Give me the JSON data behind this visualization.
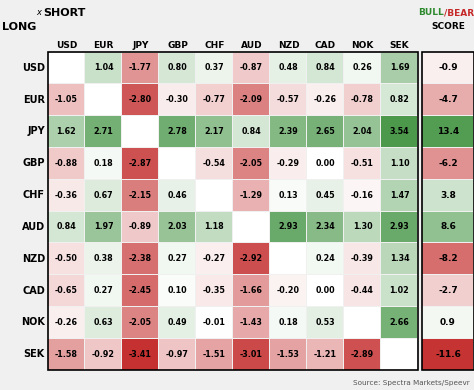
{
  "currencies": [
    "USD",
    "EUR",
    "JPY",
    "GBP",
    "CHF",
    "AUD",
    "NZD",
    "CAD",
    "NOK",
    "SEK"
  ],
  "matrix": [
    [
      null,
      1.04,
      -1.77,
      0.8,
      0.37,
      -0.87,
      0.48,
      0.84,
      0.26,
      1.69
    ],
    [
      -1.05,
      null,
      -2.8,
      -0.3,
      -0.77,
      -2.09,
      -0.57,
      -0.26,
      -0.78,
      0.82
    ],
    [
      1.62,
      2.71,
      null,
      2.78,
      2.17,
      0.84,
      2.39,
      2.65,
      2.04,
      3.54
    ],
    [
      -0.88,
      0.18,
      -2.87,
      null,
      -0.54,
      -2.05,
      -0.29,
      0.0,
      -0.51,
      1.1
    ],
    [
      -0.36,
      0.67,
      -2.15,
      0.46,
      null,
      -1.29,
      0.13,
      0.45,
      -0.16,
      1.47
    ],
    [
      0.84,
      1.97,
      -0.89,
      2.03,
      1.18,
      null,
      2.93,
      2.34,
      1.3,
      2.93
    ],
    [
      -0.5,
      0.38,
      -2.38,
      0.27,
      -0.27,
      -2.92,
      null,
      0.24,
      -0.39,
      1.34
    ],
    [
      -0.65,
      0.27,
      -2.45,
      0.1,
      -0.35,
      -1.66,
      -0.2,
      0.0,
      -0.44,
      1.02
    ],
    [
      -0.26,
      0.63,
      -2.05,
      0.49,
      -0.01,
      -1.43,
      0.18,
      0.53,
      null,
      2.66
    ],
    [
      -1.58,
      -0.92,
      -3.41,
      -0.97,
      -1.51,
      -3.01,
      -1.53,
      -1.21,
      -2.89,
      null
    ]
  ],
  "scores": [
    -0.9,
    -4.7,
    13.4,
    -6.2,
    3.8,
    8.6,
    -8.2,
    -2.7,
    0.9,
    -11.6
  ],
  "source": "Source: Spectra Markets/Speevr",
  "bg_color": "#f0f0f0"
}
